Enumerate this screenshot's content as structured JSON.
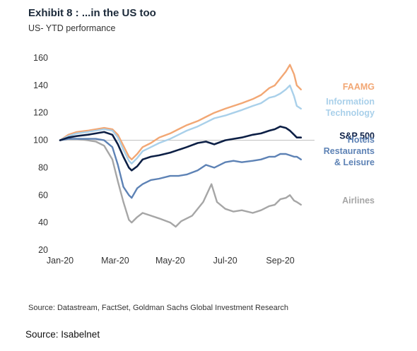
{
  "title": "Exhibit 8 : ...in the US too",
  "subtitle": "US- YTD performance",
  "source": "Source: Datastream, FactSet, Goldman Sachs Global Investment Research",
  "credit": "Source: Isabelnet",
  "chart_data": {
    "type": "line",
    "title": "Exhibit 8 : ...in the US too",
    "subtitle": "US- YTD performance",
    "xlabel": "",
    "ylabel": "",
    "xlim": [
      0,
      9.5
    ],
    "ylim": [
      20,
      160
    ],
    "y_ticks": [
      20,
      40,
      60,
      80,
      100,
      120,
      140,
      160
    ],
    "x_ticks": [
      {
        "pos": 0,
        "label": "Jan-20"
      },
      {
        "pos": 2,
        "label": "Mar-20"
      },
      {
        "pos": 4,
        "label": "May-20"
      },
      {
        "pos": 6,
        "label": "Jul-20"
      },
      {
        "pos": 8,
        "label": "Sep-20"
      }
    ],
    "reference_line": 100,
    "grid": false,
    "legend": "right (inline labels)",
    "series": [
      {
        "name": "FAAMG",
        "color": "#f2a774",
        "label_lines": [
          "FAAMG"
        ],
        "label_y": 139,
        "points": [
          [
            0,
            100
          ],
          [
            0.3,
            104
          ],
          [
            0.6,
            106
          ],
          [
            1,
            107
          ],
          [
            1.3,
            108
          ],
          [
            1.6,
            109
          ],
          [
            1.9,
            108
          ],
          [
            2.1,
            104
          ],
          [
            2.3,
            96
          ],
          [
            2.5,
            88
          ],
          [
            2.6,
            86
          ],
          [
            2.8,
            90
          ],
          [
            3,
            95
          ],
          [
            3.3,
            98
          ],
          [
            3.6,
            102
          ],
          [
            4,
            105
          ],
          [
            4.3,
            108
          ],
          [
            4.6,
            111
          ],
          [
            5,
            114
          ],
          [
            5.3,
            117
          ],
          [
            5.6,
            120
          ],
          [
            6,
            123
          ],
          [
            6.3,
            125
          ],
          [
            6.6,
            127
          ],
          [
            7,
            130
          ],
          [
            7.3,
            133
          ],
          [
            7.6,
            138
          ],
          [
            7.8,
            140
          ],
          [
            8,
            145
          ],
          [
            8.2,
            150
          ],
          [
            8.35,
            155
          ],
          [
            8.5,
            148
          ],
          [
            8.6,
            140
          ],
          [
            8.75,
            137
          ]
        ]
      },
      {
        "name": "Information Technology",
        "color": "#a9d0ea",
        "label_lines": [
          "Information",
          "Technology"
        ],
        "label_y": 124,
        "points": [
          [
            0,
            100
          ],
          [
            0.3,
            103
          ],
          [
            0.6,
            105
          ],
          [
            1,
            106
          ],
          [
            1.3,
            107
          ],
          [
            1.6,
            108
          ],
          [
            1.9,
            107
          ],
          [
            2.1,
            102
          ],
          [
            2.3,
            93
          ],
          [
            2.5,
            85
          ],
          [
            2.6,
            83
          ],
          [
            2.8,
            87
          ],
          [
            3,
            92
          ],
          [
            3.3,
            95
          ],
          [
            3.6,
            98
          ],
          [
            4,
            101
          ],
          [
            4.3,
            104
          ],
          [
            4.6,
            107
          ],
          [
            5,
            110
          ],
          [
            5.3,
            113
          ],
          [
            5.6,
            116
          ],
          [
            6,
            118
          ],
          [
            6.3,
            120
          ],
          [
            6.6,
            122
          ],
          [
            7,
            125
          ],
          [
            7.3,
            127
          ],
          [
            7.6,
            131
          ],
          [
            7.8,
            132
          ],
          [
            8,
            134
          ],
          [
            8.2,
            137
          ],
          [
            8.35,
            140
          ],
          [
            8.5,
            132
          ],
          [
            8.6,
            125
          ],
          [
            8.75,
            123
          ]
        ]
      },
      {
        "name": "S&P 500",
        "color": "#0c1f45",
        "label_lines": [
          "S&P 500"
        ],
        "label_y": 103,
        "points": [
          [
            0,
            100
          ],
          [
            0.3,
            102
          ],
          [
            0.6,
            103
          ],
          [
            1,
            104
          ],
          [
            1.3,
            105
          ],
          [
            1.6,
            106
          ],
          [
            1.9,
            104
          ],
          [
            2.1,
            97
          ],
          [
            2.3,
            88
          ],
          [
            2.5,
            80
          ],
          [
            2.6,
            78
          ],
          [
            2.8,
            81
          ],
          [
            3,
            86
          ],
          [
            3.3,
            88
          ],
          [
            3.6,
            89
          ],
          [
            4,
            91
          ],
          [
            4.3,
            93
          ],
          [
            4.6,
            95
          ],
          [
            5,
            98
          ],
          [
            5.3,
            99
          ],
          [
            5.6,
            97
          ],
          [
            6,
            100
          ],
          [
            6.3,
            101
          ],
          [
            6.6,
            102
          ],
          [
            7,
            104
          ],
          [
            7.3,
            105
          ],
          [
            7.6,
            107
          ],
          [
            7.8,
            108
          ],
          [
            8,
            110
          ],
          [
            8.2,
            109
          ],
          [
            8.35,
            107
          ],
          [
            8.5,
            104
          ],
          [
            8.6,
            102
          ],
          [
            8.75,
            102
          ]
        ]
      },
      {
        "name": "Hotels Restaurants & Leisure",
        "color": "#5d82b5",
        "label_lines": [
          "Hotels",
          "Restaurants",
          "& Leisure"
        ],
        "label_y": 92,
        "points": [
          [
            0,
            100
          ],
          [
            0.3,
            101
          ],
          [
            0.6,
            101
          ],
          [
            1,
            101
          ],
          [
            1.3,
            101
          ],
          [
            1.6,
            100
          ],
          [
            1.9,
            95
          ],
          [
            2.1,
            82
          ],
          [
            2.3,
            66
          ],
          [
            2.5,
            60
          ],
          [
            2.6,
            58
          ],
          [
            2.8,
            65
          ],
          [
            3,
            68
          ],
          [
            3.3,
            71
          ],
          [
            3.6,
            72
          ],
          [
            4,
            74
          ],
          [
            4.3,
            74
          ],
          [
            4.6,
            75
          ],
          [
            5,
            78
          ],
          [
            5.3,
            82
          ],
          [
            5.6,
            80
          ],
          [
            6,
            84
          ],
          [
            6.3,
            85
          ],
          [
            6.6,
            84
          ],
          [
            7,
            85
          ],
          [
            7.3,
            86
          ],
          [
            7.6,
            88
          ],
          [
            7.8,
            88
          ],
          [
            8,
            90
          ],
          [
            8.2,
            90
          ],
          [
            8.35,
            89
          ],
          [
            8.5,
            88
          ],
          [
            8.6,
            88
          ],
          [
            8.75,
            86
          ]
        ]
      },
      {
        "name": "Airlines",
        "color": "#a6a6a6",
        "label_lines": [
          "Airlines"
        ],
        "label_y": 56,
        "points": [
          [
            0,
            100
          ],
          [
            0.3,
            101
          ],
          [
            0.6,
            101
          ],
          [
            1,
            100
          ],
          [
            1.3,
            99
          ],
          [
            1.6,
            96
          ],
          [
            1.9,
            86
          ],
          [
            2.1,
            70
          ],
          [
            2.3,
            55
          ],
          [
            2.5,
            42
          ],
          [
            2.6,
            40
          ],
          [
            2.8,
            44
          ],
          [
            3,
            47
          ],
          [
            3.3,
            45
          ],
          [
            3.6,
            43
          ],
          [
            4,
            40
          ],
          [
            4.2,
            37
          ],
          [
            4.4,
            41
          ],
          [
            4.8,
            45
          ],
          [
            5.2,
            55
          ],
          [
            5.5,
            68
          ],
          [
            5.7,
            55
          ],
          [
            6,
            50
          ],
          [
            6.3,
            48
          ],
          [
            6.6,
            49
          ],
          [
            7,
            47
          ],
          [
            7.3,
            49
          ],
          [
            7.6,
            52
          ],
          [
            7.8,
            53
          ],
          [
            8,
            57
          ],
          [
            8.2,
            58
          ],
          [
            8.35,
            60
          ],
          [
            8.5,
            56
          ],
          [
            8.6,
            55
          ],
          [
            8.75,
            53
          ]
        ]
      }
    ]
  }
}
